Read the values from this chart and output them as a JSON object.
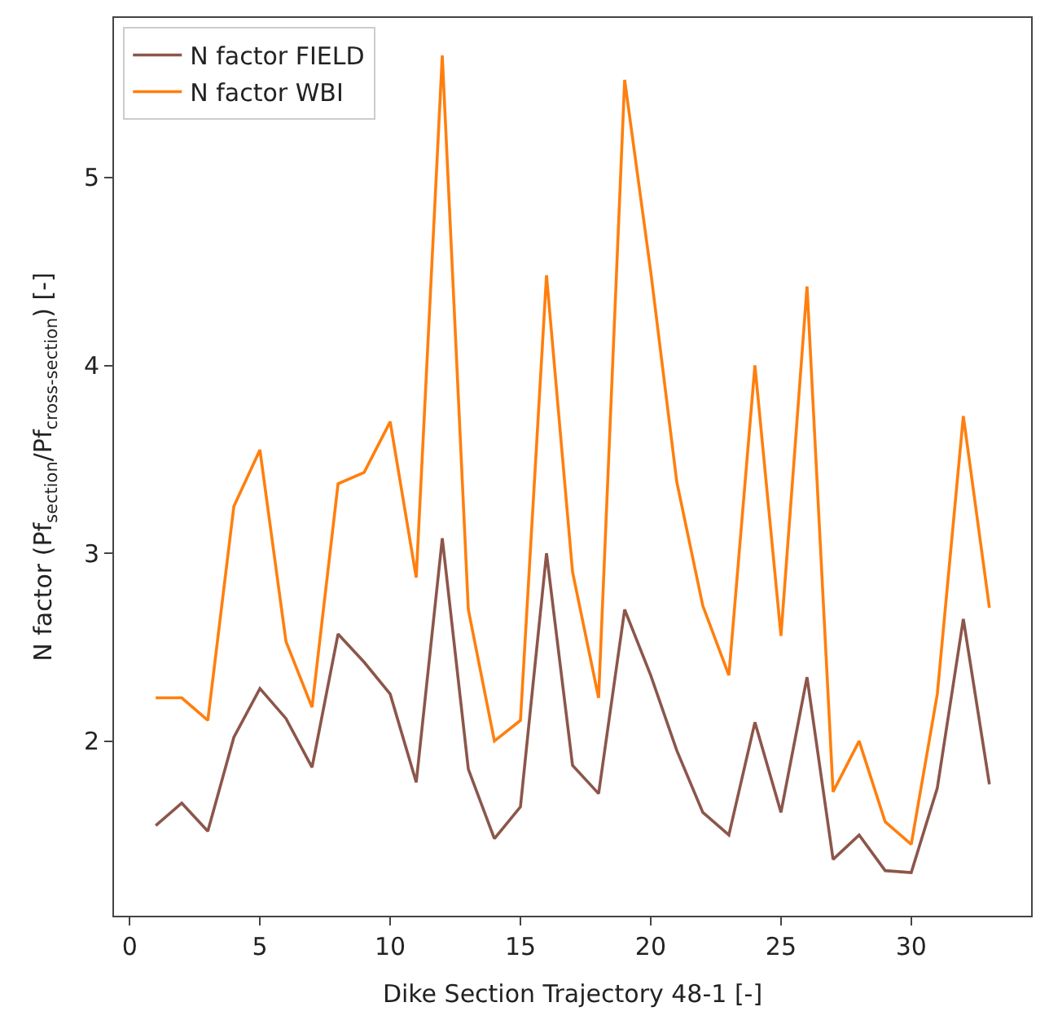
{
  "chart_data": {
    "type": "line",
    "x": [
      1,
      2,
      3,
      4,
      5,
      6,
      7,
      8,
      9,
      10,
      11,
      12,
      13,
      14,
      15,
      16,
      17,
      18,
      19,
      20,
      21,
      22,
      23,
      24,
      25,
      26,
      27,
      28,
      29,
      30,
      31,
      32,
      33
    ],
    "series": [
      {
        "name": "N factor FIELD",
        "color": "#8c564b",
        "values": [
          1.55,
          1.67,
          1.52,
          2.02,
          2.28,
          2.12,
          1.86,
          2.57,
          2.42,
          2.25,
          1.78,
          3.08,
          1.85,
          1.48,
          1.65,
          3.0,
          1.87,
          1.72,
          2.7,
          2.35,
          1.95,
          1.62,
          1.5,
          2.1,
          1.62,
          2.34,
          1.37,
          1.5,
          1.31,
          1.3,
          1.75,
          2.65,
          1.77
        ]
      },
      {
        "name": "N factor WBI",
        "color": "#ff7f0e",
        "values": [
          2.23,
          2.23,
          2.11,
          3.25,
          3.55,
          2.53,
          2.18,
          3.37,
          3.43,
          3.7,
          2.87,
          5.65,
          2.7,
          2.0,
          2.11,
          4.48,
          2.9,
          2.23,
          5.52,
          4.5,
          3.38,
          2.72,
          2.35,
          4.0,
          2.56,
          4.42,
          1.73,
          2.0,
          1.57,
          1.45,
          2.25,
          3.73,
          2.71
        ]
      }
    ],
    "xlabel": "Dike Section Trajectory 48-1 [-]",
    "ylabel": "N factor (Pf$_{section}$/Pf$_{cross-section}$) [-]",
    "xlim": [
      -0.6,
      34.6
    ],
    "xticks": [
      0,
      5,
      10,
      15,
      20,
      25,
      30
    ],
    "ylim": [
      1.07,
      5.85
    ],
    "yticks": [
      2,
      3,
      4,
      5
    ],
    "legend": "top left",
    "marker": "none",
    "line_style": "solid"
  }
}
